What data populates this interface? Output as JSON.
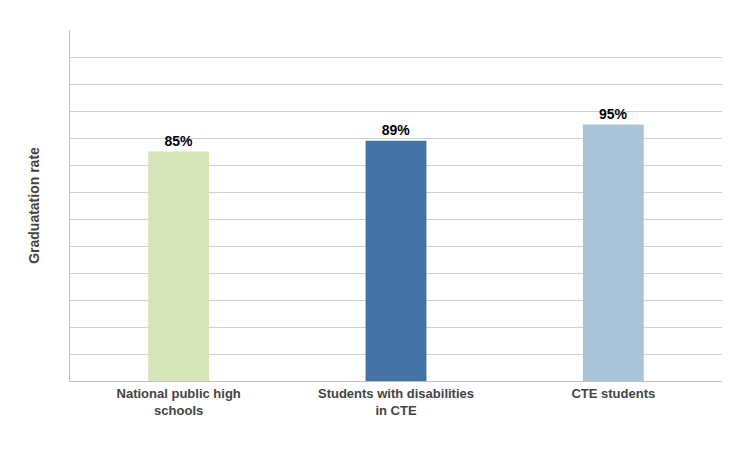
{
  "chart_data": {
    "type": "bar",
    "categories": [
      "National public high\nschools",
      "Students with disabilities\nin CTE",
      "CTE students"
    ],
    "values": [
      85,
      89,
      95
    ],
    "value_labels": [
      "85%",
      "89%",
      "95%"
    ],
    "data_labels": true,
    "colors": [
      "#d6e4b8",
      "#4472a4",
      "#a9c4d9"
    ],
    "ylabel": "Graduatation rate",
    "ylim": [
      0,
      130
    ],
    "yticks": [
      0,
      10,
      20,
      30,
      40,
      50,
      60,
      70,
      80,
      90,
      100,
      110,
      120
    ],
    "grid": true,
    "tick_labels": "x"
  }
}
